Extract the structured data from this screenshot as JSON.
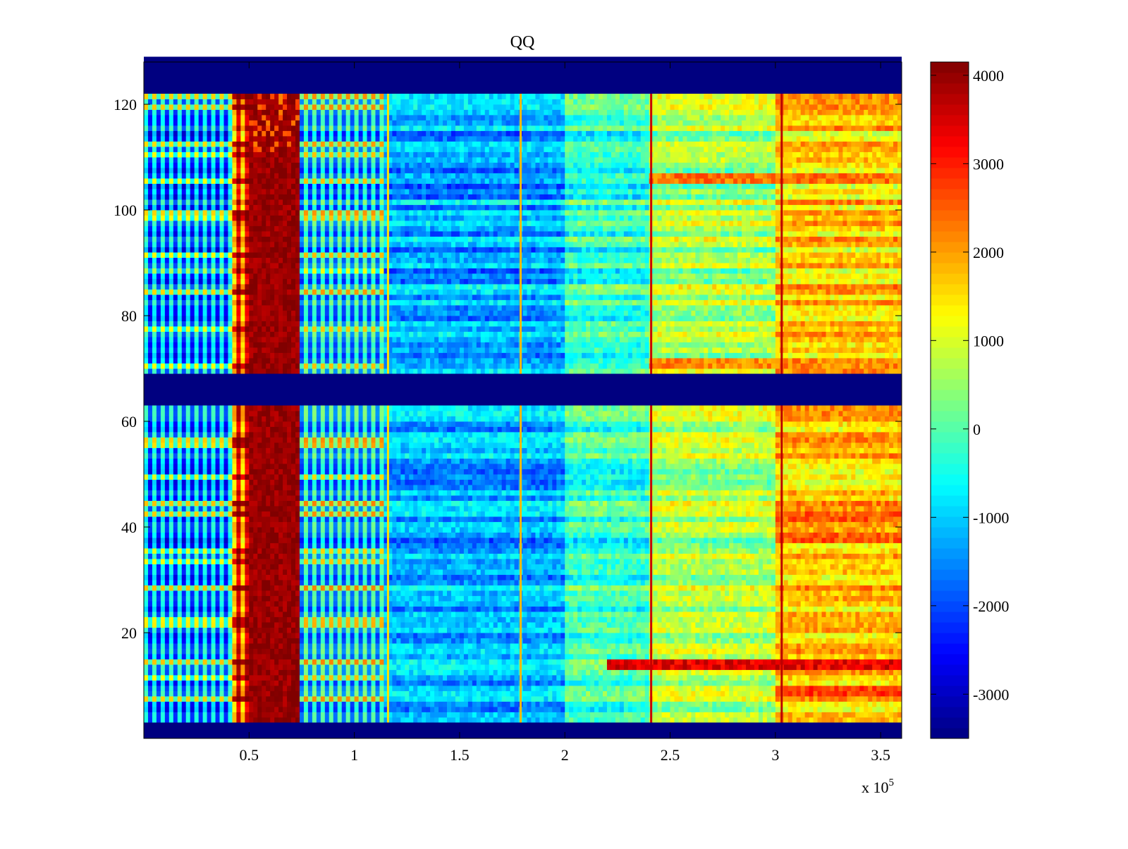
{
  "chart_data": {
    "type": "heatmap",
    "title": "QQ",
    "xlabel": "",
    "ylabel": "",
    "x_multiplier": "x 10",
    "x_multiplier_exponent": "5",
    "xlim": [
      0.0,
      3.6
    ],
    "ylim": [
      0,
      128
    ],
    "x_ticks": [
      {
        "value": 0.5,
        "label": "0.5"
      },
      {
        "value": 1.0,
        "label": "1"
      },
      {
        "value": 1.5,
        "label": "1.5"
      },
      {
        "value": 2.0,
        "label": "2"
      },
      {
        "value": 2.5,
        "label": "2.5"
      },
      {
        "value": 3.0,
        "label": "3"
      },
      {
        "value": 3.5,
        "label": "3.5"
      }
    ],
    "y_ticks": [
      {
        "value": 20,
        "label": "20"
      },
      {
        "value": 40,
        "label": "40"
      },
      {
        "value": 60,
        "label": "60"
      },
      {
        "value": 80,
        "label": "80"
      },
      {
        "value": 100,
        "label": "100"
      },
      {
        "value": 120,
        "label": "120"
      }
    ],
    "colormap": "jet",
    "colorbar": {
      "range": [
        -3500,
        4150
      ],
      "ticks": [
        {
          "value": 4000,
          "label": "4000"
        },
        {
          "value": 3000,
          "label": "3000"
        },
        {
          "value": 2000,
          "label": "2000"
        },
        {
          "value": 1000,
          "label": "1000"
        },
        {
          "value": 0,
          "label": "0"
        },
        {
          "value": -1000,
          "label": "-1000"
        },
        {
          "value": -2000,
          "label": "-2000"
        },
        {
          "value": -3000,
          "label": "-3000"
        }
      ]
    },
    "empty_row_bands": [
      {
        "y_range": [
          0,
          3
        ],
        "value": -3500
      },
      {
        "y_range": [
          63,
          69
        ],
        "value": -3500
      },
      {
        "y_range": [
          122,
          129
        ],
        "value": -3500
      }
    ],
    "data_row_bands": [
      {
        "y_range": [
          3,
          63
        ]
      },
      {
        "y_range": [
          69,
          122
        ]
      }
    ],
    "column_regions": [
      {
        "x_range": [
          0.0,
          0.42
        ],
        "description_value": -1500,
        "pattern": "alternating"
      },
      {
        "x_range": [
          0.42,
          0.5
        ],
        "description_value": 2500,
        "pattern": "alternating"
      },
      {
        "x_range": [
          0.5,
          0.75
        ],
        "description_value": 4100,
        "pattern": "solid"
      },
      {
        "x_range": [
          0.75,
          1.15
        ],
        "description_value": -1000,
        "pattern": "alternating"
      },
      {
        "x_range": [
          1.15,
          2.0
        ],
        "description_value": -1300,
        "pattern": "noise"
      },
      {
        "x_range": [
          2.0,
          2.4
        ],
        "description_value": -300,
        "pattern": "noise"
      },
      {
        "x_range": [
          2.4,
          3.0
        ],
        "description_value": 600,
        "pattern": "noise"
      },
      {
        "x_range": [
          3.0,
          3.6
        ],
        "description_value": 1600,
        "pattern": "noise"
      }
    ],
    "vertical_lines": [
      {
        "x": 1.16,
        "value": 1500
      },
      {
        "x": 1.79,
        "value": 1800
      },
      {
        "x": 2.41,
        "value": 3600
      },
      {
        "x": 3.03,
        "value": 3700
      }
    ],
    "hot_rows": [
      {
        "y": 14,
        "value": 3800,
        "from_x": 2.2
      },
      {
        "y": 9,
        "value": 3200,
        "from_x": 3.0
      },
      {
        "y": 38,
        "value": 3000,
        "from_x": 3.0
      },
      {
        "y": 42,
        "value": 3000,
        "from_x": 3.0
      },
      {
        "y": 106,
        "value": 2800,
        "from_x": 2.4
      },
      {
        "y": 71,
        "value": 2600,
        "from_x": 2.4
      }
    ]
  }
}
